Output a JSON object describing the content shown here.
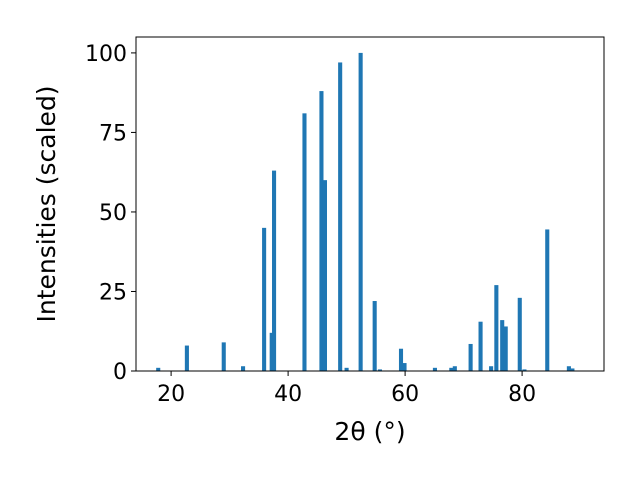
{
  "chart_data": {
    "type": "bar",
    "xlabel": "2θ (°)",
    "ylabel": "Intensities (scaled)",
    "xlim": [
      14,
      94
    ],
    "ylim": [
      0,
      105
    ],
    "bar_width_deg": 0.7,
    "bar_color": "#1f77b4",
    "grid": false,
    "x_ticks": [
      20,
      40,
      60,
      80
    ],
    "x_tick_labels": [
      "20",
      "40",
      "60",
      "80"
    ],
    "y_ticks": [
      0,
      25,
      50,
      75,
      100
    ],
    "y_tick_labels": [
      "0",
      "25",
      "50",
      "75",
      "100"
    ],
    "x": [
      17.8,
      22.7,
      29.0,
      32.3,
      35.9,
      37.2,
      37.6,
      42.8,
      45.7,
      46.3,
      48.9,
      50.0,
      52.4,
      54.8,
      55.7,
      59.3,
      59.9,
      65.1,
      67.9,
      68.5,
      71.2,
      72.9,
      74.7,
      75.6,
      76.6,
      77.2,
      79.6,
      80.4,
      84.3,
      88.0,
      88.6
    ],
    "values": [
      1,
      8,
      9,
      1.5,
      45,
      12,
      63,
      81,
      88,
      60,
      97,
      1,
      100,
      22,
      0.5,
      7,
      2.5,
      1,
      1,
      1.5,
      8.5,
      15.5,
      1.5,
      27,
      16,
      14,
      23,
      0.5,
      44.5,
      1.5,
      0.8
    ]
  }
}
